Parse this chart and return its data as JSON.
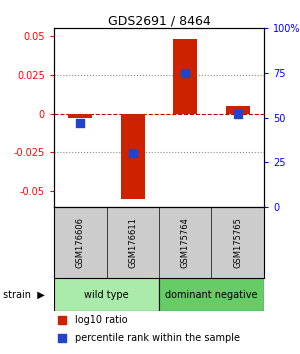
{
  "title": "GDS2691 / 8464",
  "samples": [
    "GSM176606",
    "GSM176611",
    "GSM175764",
    "GSM175765"
  ],
  "log10_ratio": [
    -0.003,
    -0.055,
    0.048,
    0.005
  ],
  "percentile_rank_pct": [
    47,
    30,
    75,
    52
  ],
  "groups": [
    {
      "name": "wild type",
      "indices": [
        0,
        1
      ],
      "color": "#aaeaaa"
    },
    {
      "name": "dominant negative",
      "indices": [
        2,
        3
      ],
      "color": "#66cc66"
    }
  ],
  "ylim": [
    -0.06,
    0.055
  ],
  "yticks_left": [
    -0.05,
    -0.025,
    0,
    0.025,
    0.05
  ],
  "yticks_right": [
    0,
    25,
    50,
    75,
    100
  ],
  "bar_color_red": "#cc2200",
  "bar_color_blue": "#2244cc",
  "hline_color": "#cc0000",
  "dotted_line_color": "#888888",
  "background_color": "#ffffff",
  "sample_bg_color": "#cccccc",
  "bar_width": 0.45,
  "blue_square_size": 35
}
